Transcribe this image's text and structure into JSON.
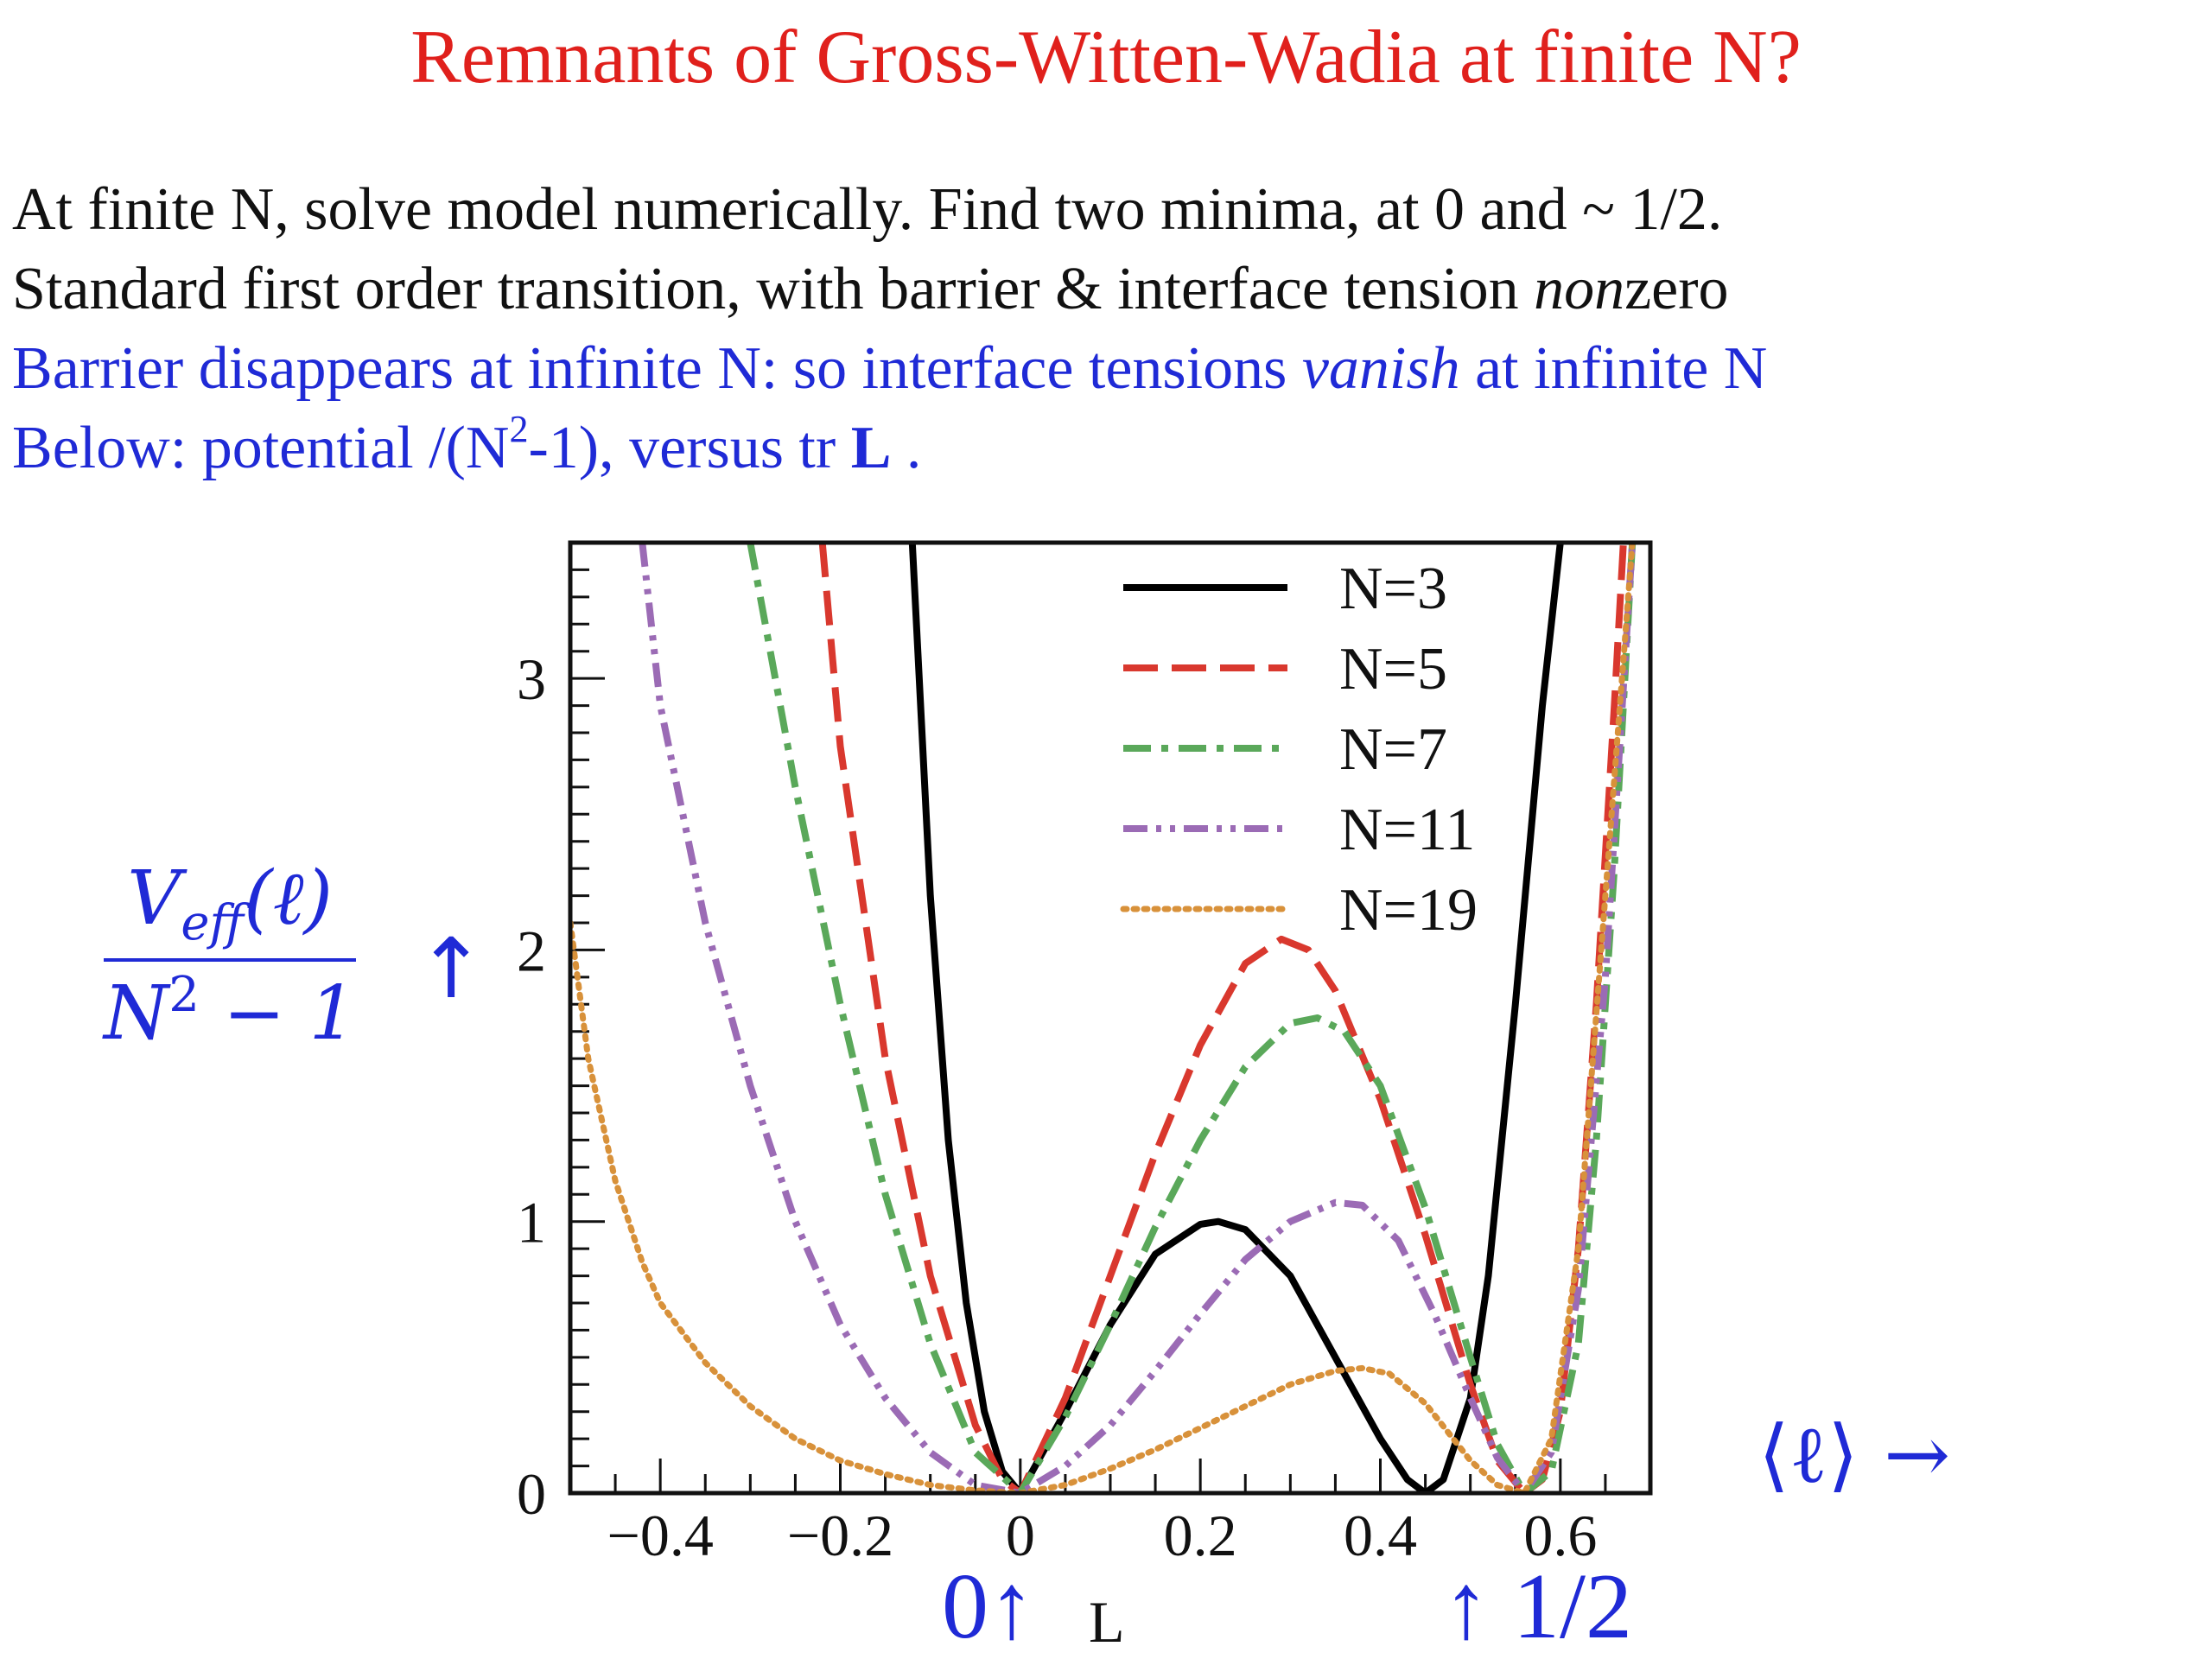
{
  "title": "Remnants of Gross-Witten-Wadia at finite N?",
  "text": {
    "line1": "At finite N, solve model numerically.  Find two minima, at 0 and ~ 1/2.",
    "line2_a": "Standard first order transition, with barrier & interface tension ",
    "line2_b": "non",
    "line2_c": "zero",
    "line3_a": "Barrier disappears at infinite N: so interface tensions ",
    "line3_b": "vanish",
    "line3_c": " at infinite N",
    "line4_a": "Below: potential /(N",
    "line4_sup": "2",
    "line4_b": "-1), versus tr ",
    "line4_bold": "L",
    "line4_c": " ."
  },
  "annotations": {
    "ylabel_num_main": "V",
    "ylabel_num_sub": "eff",
    "ylabel_num_arg": "(ℓ)",
    "ylabel_den_main": "N",
    "ylabel_den_sup": "2",
    "ylabel_den_rest": " − 1",
    "yarrow": "↑",
    "xlabel": "⟨ℓ⟩ →",
    "zero_mark": "0↑",
    "L_mark": "L",
    "half_mark": "↑ 1/2"
  },
  "colors": {
    "title": "#e0201c",
    "blue_text": "#1f2ad6",
    "N3": "#000000",
    "N5": "#d9382e",
    "N7": "#5aa85a",
    "N11": "#9b6bb5",
    "N19": "#d8913a"
  },
  "chart_data": {
    "type": "line",
    "xlim": [
      -0.5,
      0.7
    ],
    "ylim": [
      0,
      3.5
    ],
    "x_ticks": [
      "−0.4",
      "−0.2",
      "0",
      "0.2",
      "0.4",
      "0.6"
    ],
    "x_tick_values": [
      -0.4,
      -0.2,
      0,
      0.2,
      0.4,
      0.6
    ],
    "y_ticks": [
      "0",
      "1",
      "2",
      "3"
    ],
    "y_tick_values": [
      0,
      1,
      2,
      3
    ],
    "legend_position": "top-right",
    "series": [
      {
        "name": "N=3",
        "color": "#000000",
        "style": "solid",
        "x": [
          -0.12,
          -0.1,
          -0.08,
          -0.06,
          -0.04,
          -0.02,
          0,
          0.05,
          0.1,
          0.15,
          0.2,
          0.22,
          0.25,
          0.3,
          0.35,
          0.4,
          0.43,
          0.45,
          0.47,
          0.5,
          0.52,
          0.55,
          0.58,
          0.6
        ],
        "y": [
          3.5,
          2.2,
          1.3,
          0.7,
          0.3,
          0.08,
          0,
          0.3,
          0.62,
          0.88,
          0.99,
          1.0,
          0.97,
          0.8,
          0.5,
          0.2,
          0.05,
          0,
          0.05,
          0.35,
          0.8,
          1.8,
          2.9,
          3.5
        ]
      },
      {
        "name": "N=5",
        "color": "#d9382e",
        "style": "dashed",
        "x": [
          -0.22,
          -0.2,
          -0.15,
          -0.1,
          -0.05,
          -0.02,
          0,
          0.05,
          0.1,
          0.15,
          0.2,
          0.25,
          0.29,
          0.32,
          0.35,
          0.4,
          0.45,
          0.5,
          0.53,
          0.56,
          0.58,
          0.6,
          0.62,
          0.64,
          0.66,
          0.67
        ],
        "y": [
          3.5,
          2.75,
          1.6,
          0.8,
          0.25,
          0.05,
          0,
          0.35,
          0.8,
          1.25,
          1.65,
          1.95,
          2.04,
          2.0,
          1.85,
          1.45,
          0.95,
          0.4,
          0.12,
          0,
          0.05,
          0.3,
          0.9,
          1.8,
          2.9,
          3.5
        ]
      },
      {
        "name": "N=7",
        "color": "#5aa85a",
        "style": "dashdot",
        "x": [
          -0.3,
          -0.25,
          -0.2,
          -0.15,
          -0.1,
          -0.05,
          0,
          0.05,
          0.1,
          0.15,
          0.2,
          0.25,
          0.3,
          0.33,
          0.36,
          0.4,
          0.45,
          0.5,
          0.53,
          0.56,
          0.59,
          0.62,
          0.64,
          0.66,
          0.68
        ],
        "y": [
          3.5,
          2.6,
          1.8,
          1.1,
          0.55,
          0.15,
          0,
          0.28,
          0.62,
          0.98,
          1.3,
          1.57,
          1.73,
          1.75,
          1.7,
          1.5,
          1.05,
          0.5,
          0.18,
          0,
          0.08,
          0.55,
          1.3,
          2.3,
          3.5
        ]
      },
      {
        "name": "N=11",
        "color": "#9b6bb5",
        "style": "dashdotdot",
        "x": [
          -0.42,
          -0.4,
          -0.35,
          -0.3,
          -0.25,
          -0.2,
          -0.15,
          -0.1,
          -0.05,
          0,
          0.05,
          0.1,
          0.15,
          0.2,
          0.25,
          0.3,
          0.35,
          0.38,
          0.42,
          0.46,
          0.5,
          0.53,
          0.56,
          0.59,
          0.62,
          0.65,
          0.68
        ],
        "y": [
          3.5,
          2.9,
          2.1,
          1.5,
          1.0,
          0.62,
          0.35,
          0.15,
          0.03,
          0,
          0.1,
          0.25,
          0.45,
          0.66,
          0.86,
          1.0,
          1.07,
          1.06,
          0.93,
          0.66,
          0.35,
          0.13,
          0,
          0.15,
          0.75,
          1.9,
          3.5
        ]
      },
      {
        "name": "N=19",
        "color": "#d8913a",
        "style": "dotted",
        "x": [
          -0.5,
          -0.48,
          -0.45,
          -0.42,
          -0.4,
          -0.35,
          -0.3,
          -0.25,
          -0.2,
          -0.15,
          -0.1,
          -0.05,
          0,
          0.05,
          0.1,
          0.15,
          0.2,
          0.25,
          0.3,
          0.35,
          0.38,
          0.41,
          0.45,
          0.5,
          0.53,
          0.56,
          0.59,
          0.62,
          0.65,
          0.68
        ],
        "y": [
          2.1,
          1.6,
          1.15,
          0.85,
          0.7,
          0.48,
          0.32,
          0.2,
          0.12,
          0.07,
          0.03,
          0.01,
          0,
          0.03,
          0.09,
          0.16,
          0.24,
          0.32,
          0.4,
          0.45,
          0.46,
          0.44,
          0.33,
          0.12,
          0.03,
          0,
          0.2,
          0.9,
          2.2,
          3.5
        ]
      }
    ]
  }
}
